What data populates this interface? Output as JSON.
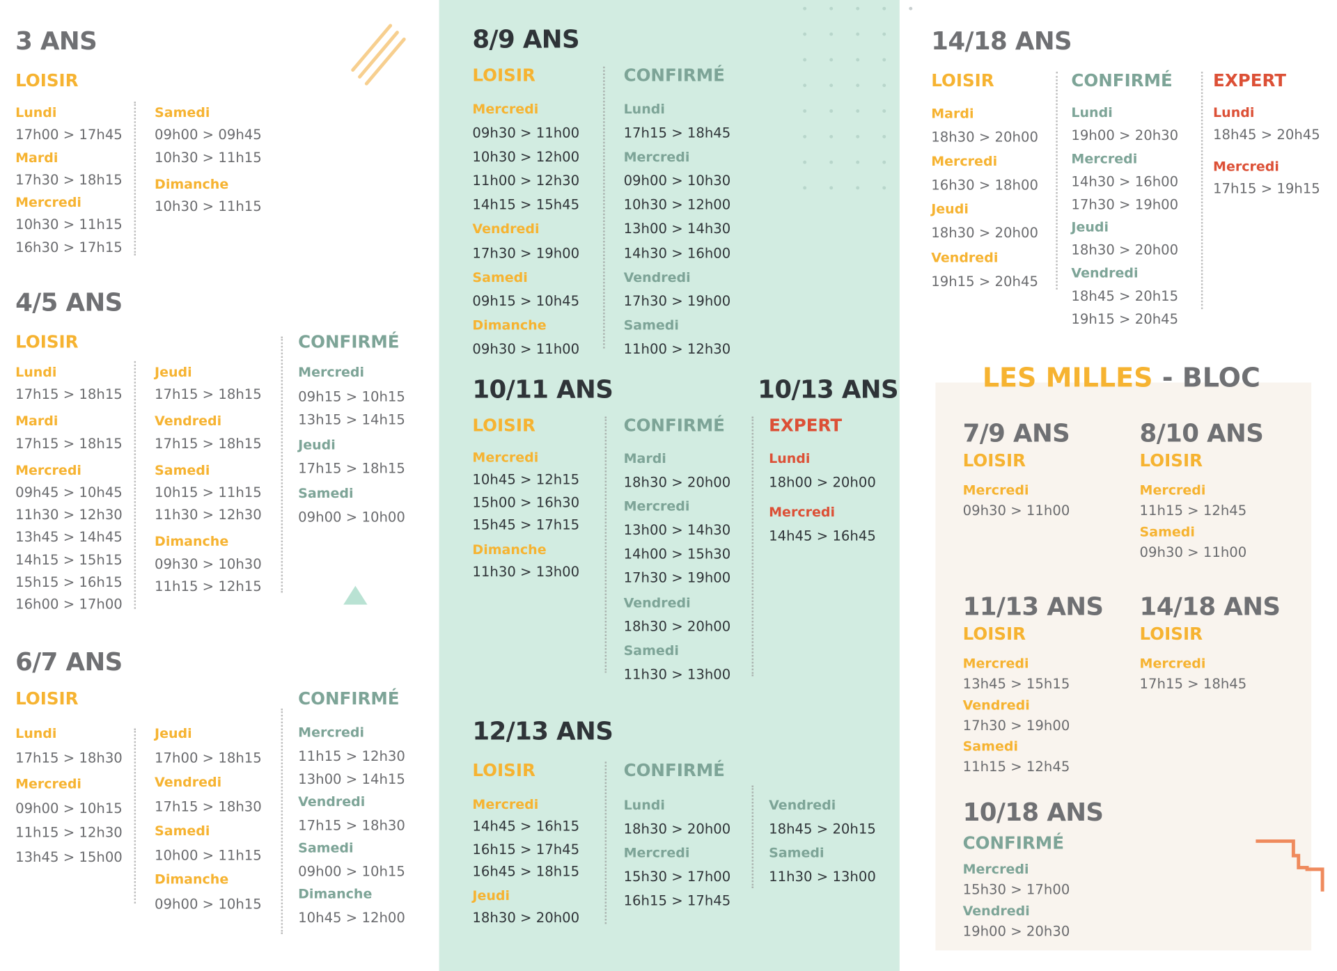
{
  "colors": {
    "orange": "#f6b331",
    "green": "#7da497",
    "red": "#dc5036",
    "mint": "#d2ece1",
    "cream": "#f9f4ee",
    "gray": "#6f7073"
  },
  "a3": {
    "title": "3 ANS",
    "loisir": "LOISIR",
    "c1": [
      [
        "d",
        "Lundi"
      ],
      [
        "t",
        "17h00 > 17h45"
      ],
      [
        "d",
        "Mardi"
      ],
      [
        "t",
        "17h30 > 18h15"
      ],
      [
        "d",
        "Mercredi"
      ],
      [
        "t",
        "10h30 > 11h15"
      ],
      [
        "t",
        "16h30 > 17h15"
      ]
    ],
    "c2": [
      [
        "d",
        "Samedi"
      ],
      [
        "t",
        "09h00 > 09h45"
      ],
      [
        "t",
        "10h30 > 11h15"
      ],
      [
        "d",
        "Dimanche"
      ],
      [
        "t",
        "10h30 > 11h15"
      ]
    ]
  },
  "a45": {
    "title": "4/5 ANS",
    "loisir": "LOISIR",
    "confirme": "CONFIRMÉ",
    "c1": [
      [
        "d",
        "Lundi"
      ],
      [
        "t",
        "17h15 > 18h15"
      ],
      [
        "d",
        "Mardi"
      ],
      [
        "t",
        "17h15 > 18h15"
      ],
      [
        "d",
        "Mercredi"
      ],
      [
        "t",
        "09h45 > 10h45"
      ],
      [
        "t",
        "11h30 > 12h30"
      ],
      [
        "t",
        "13h45 > 14h45"
      ],
      [
        "t",
        "14h15 > 15h15"
      ],
      [
        "t",
        "15h15 > 16h15"
      ],
      [
        "t",
        "16h00 > 17h00"
      ]
    ],
    "c2": [
      [
        "d",
        "Jeudi"
      ],
      [
        "t",
        "17h15 > 18h15"
      ],
      [
        "d",
        "Vendredi"
      ],
      [
        "t",
        "17h15 > 18h15"
      ],
      [
        "d",
        "Samedi"
      ],
      [
        "t",
        "10h15 > 11h15"
      ],
      [
        "t",
        "11h30 > 12h30"
      ],
      [
        "d",
        "Dimanche"
      ],
      [
        "t",
        "09h30 > 10h30"
      ],
      [
        "t",
        "11h15 > 12h15"
      ]
    ],
    "c3": [
      [
        "d",
        "Mercredi"
      ],
      [
        "t",
        "09h15 > 10h15"
      ],
      [
        "t",
        "13h15 > 14h15"
      ],
      [
        "d",
        "Jeudi"
      ],
      [
        "t",
        "17h15 > 18h15"
      ],
      [
        "d",
        "Samedi"
      ],
      [
        "t",
        "09h00 > 10h00"
      ]
    ]
  },
  "a67": {
    "title": "6/7 ANS",
    "loisir": "LOISIR",
    "confirme": "CONFIRMÉ",
    "c1": [
      [
        "d",
        "Lundi"
      ],
      [
        "t",
        "17h15 > 18h30"
      ],
      [
        "d",
        "Mercredi"
      ],
      [
        "t",
        "09h00 > 10h15"
      ],
      [
        "t",
        "11h15 > 12h30"
      ],
      [
        "t",
        "13h45 > 15h00"
      ]
    ],
    "c2": [
      [
        "d",
        "Jeudi"
      ],
      [
        "t",
        "17h00 > 18h15"
      ],
      [
        "d",
        "Vendredi"
      ],
      [
        "t",
        "17h15 > 18h30"
      ],
      [
        "d",
        "Samedi"
      ],
      [
        "t",
        "10h00 > 11h15"
      ],
      [
        "d",
        "Dimanche"
      ],
      [
        "t",
        "09h00 > 10h15"
      ]
    ],
    "c3": [
      [
        "d",
        "Mercredi"
      ],
      [
        "t",
        "11h15 > 12h30"
      ],
      [
        "t",
        "13h00 > 14h15"
      ],
      [
        "d",
        "Vendredi"
      ],
      [
        "t",
        "17h15 > 18h30"
      ],
      [
        "d",
        "Samedi"
      ],
      [
        "t",
        "09h00 > 10h15"
      ],
      [
        "d",
        "Dimanche"
      ],
      [
        "t",
        "10h45 > 12h00"
      ]
    ]
  },
  "a89": {
    "title": "8/9 ANS",
    "loisir": "LOISIR",
    "confirme": "CONFIRMÉ",
    "c1": [
      [
        "d",
        "Mercredi"
      ],
      [
        "t",
        "09h30 > 11h00"
      ],
      [
        "t",
        "10h30 > 12h00"
      ],
      [
        "t",
        "11h00 > 12h30"
      ],
      [
        "t",
        "14h15 > 15h45"
      ],
      [
        "d",
        "Vendredi"
      ],
      [
        "t",
        "17h30 > 19h00"
      ],
      [
        "d",
        "Samedi"
      ],
      [
        "t",
        "09h15 > 10h45"
      ],
      [
        "d",
        "Dimanche"
      ],
      [
        "t",
        "09h30 > 11h00"
      ]
    ],
    "c2": [
      [
        "d",
        "Lundi"
      ],
      [
        "t",
        "17h15 > 18h45"
      ],
      [
        "d",
        "Mercredi"
      ],
      [
        "t",
        "09h00 > 10h30"
      ],
      [
        "t",
        "10h30 > 12h00"
      ],
      [
        "t",
        "13h00 > 14h30"
      ],
      [
        "t",
        "14h30 > 16h00"
      ],
      [
        "d",
        "Vendredi"
      ],
      [
        "t",
        "17h30 > 19h00"
      ],
      [
        "d",
        "Samedi"
      ],
      [
        "t",
        "11h00 > 12h30"
      ]
    ]
  },
  "a1011": {
    "title": "10/11 ANS",
    "title2": "10/13 ANS",
    "loisir": "LOISIR",
    "confirme": "CONFIRMÉ",
    "expert": "EXPERT",
    "c1": [
      [
        "d",
        "Mercredi"
      ],
      [
        "t",
        "10h45 > 12h15"
      ],
      [
        "t",
        "15h00 > 16h30"
      ],
      [
        "t",
        "15h45 > 17h15"
      ],
      [
        "d",
        "Dimanche"
      ],
      [
        "t",
        "11h30 > 13h00"
      ]
    ],
    "c2": [
      [
        "d",
        "Mardi"
      ],
      [
        "t",
        "18h30 > 20h00"
      ],
      [
        "d",
        "Mercredi"
      ],
      [
        "t",
        "13h00 > 14h30"
      ],
      [
        "t",
        "14h00 > 15h30"
      ],
      [
        "t",
        "17h30 > 19h00"
      ],
      [
        "d",
        "Vendredi"
      ],
      [
        "t",
        "18h30 > 20h00"
      ],
      [
        "d",
        "Samedi"
      ],
      [
        "t",
        "11h30 > 13h00"
      ]
    ],
    "c3": [
      [
        "d",
        "Lundi"
      ],
      [
        "t",
        "18h00 > 20h00"
      ],
      [
        "d",
        "Mercredi"
      ],
      [
        "t",
        "14h45 > 16h45"
      ]
    ]
  },
  "a1213": {
    "title": "12/13 ANS",
    "loisir": "LOISIR",
    "confirme": "CONFIRMÉ",
    "c1": [
      [
        "d",
        "Mercredi"
      ],
      [
        "t",
        "14h45 > 16h15"
      ],
      [
        "t",
        "16h15 > 17h45"
      ],
      [
        "t",
        "16h45 > 18h15"
      ],
      [
        "d",
        "Jeudi"
      ],
      [
        "t",
        "18h30 > 20h00"
      ]
    ],
    "c2": [
      [
        "d",
        "Lundi"
      ],
      [
        "t",
        "18h30 > 20h00"
      ],
      [
        "d",
        "Mercredi"
      ],
      [
        "t",
        "15h30 > 17h00"
      ],
      [
        "t",
        "16h15 > 17h45"
      ]
    ],
    "c3": [
      [
        "d",
        "Vendredi"
      ],
      [
        "t",
        "18h45 > 20h15"
      ],
      [
        "d",
        "Samedi"
      ],
      [
        "t",
        "11h30 > 13h00"
      ]
    ]
  },
  "a1418": {
    "title": "14/18 ANS",
    "loisir": "LOISIR",
    "confirme": "CONFIRMÉ",
    "expert": "EXPERT",
    "c1": [
      [
        "d",
        "Mardi"
      ],
      [
        "t",
        "18h30 > 20h00"
      ],
      [
        "d",
        "Mercredi"
      ],
      [
        "t",
        "16h30 > 18h00"
      ],
      [
        "d",
        "Jeudi"
      ],
      [
        "t",
        "18h30 > 20h00"
      ],
      [
        "d",
        "Vendredi"
      ],
      [
        "t",
        "19h15 > 20h45"
      ]
    ],
    "c2": [
      [
        "d",
        "Lundi"
      ],
      [
        "t",
        "19h00 > 20h30"
      ],
      [
        "d",
        "Mercredi"
      ],
      [
        "t",
        "14h30 > 16h00"
      ],
      [
        "t",
        "17h30 > 19h00"
      ],
      [
        "d",
        "Jeudi"
      ],
      [
        "t",
        "18h30 > 20h00"
      ],
      [
        "d",
        "Vendredi"
      ],
      [
        "t",
        "18h45 > 20h15"
      ],
      [
        "t",
        "19h15 > 20h45"
      ]
    ],
    "c3": [
      [
        "d",
        "Lundi"
      ],
      [
        "t",
        "18h45 > 20h45"
      ],
      [
        "d",
        "Mercredi"
      ],
      [
        "t",
        "17h15 > 19h15"
      ]
    ]
  },
  "bloc": {
    "title_a": "LES MILLES",
    "title_b": " - BLOC",
    "b79": {
      "title": "7/9 ANS",
      "level": "LOISIR",
      "rows": [
        [
          "d",
          "Mercredi"
        ],
        [
          "t",
          "09h30 > 11h00"
        ]
      ]
    },
    "b810": {
      "title": "8/10 ANS",
      "level": "LOISIR",
      "rows": [
        [
          "d",
          "Mercredi"
        ],
        [
          "t",
          "11h15 > 12h45"
        ],
        [
          "d",
          "Samedi"
        ],
        [
          "t",
          "09h30 > 11h00"
        ]
      ]
    },
    "b1113": {
      "title": "11/13 ANS",
      "level": "LOISIR",
      "rows": [
        [
          "d",
          "Mercredi"
        ],
        [
          "t",
          "13h45 > 15h15"
        ],
        [
          "d",
          "Vendredi"
        ],
        [
          "t",
          "17h30 > 19h00"
        ],
        [
          "d",
          "Samedi"
        ],
        [
          "t",
          "11h15 > 12h45"
        ]
      ]
    },
    "b1418": {
      "title": "14/18 ANS",
      "level": "LOISIR",
      "rows": [
        [
          "d",
          "Mercredi"
        ],
        [
          "t",
          "17h15 > 18h45"
        ]
      ]
    },
    "b1018": {
      "title": "10/18 ANS",
      "level": "CONFIRMÉ",
      "rows": [
        [
          "d",
          "Mercredi"
        ],
        [
          "t",
          "15h30 > 17h00"
        ],
        [
          "d",
          "Vendredi"
        ],
        [
          "t",
          "19h00 > 20h30"
        ]
      ]
    }
  },
  "icons": [
    "diagonal-stripes-icon",
    "triangle-icon",
    "dot-grid-icon",
    "staircase-icon"
  ]
}
